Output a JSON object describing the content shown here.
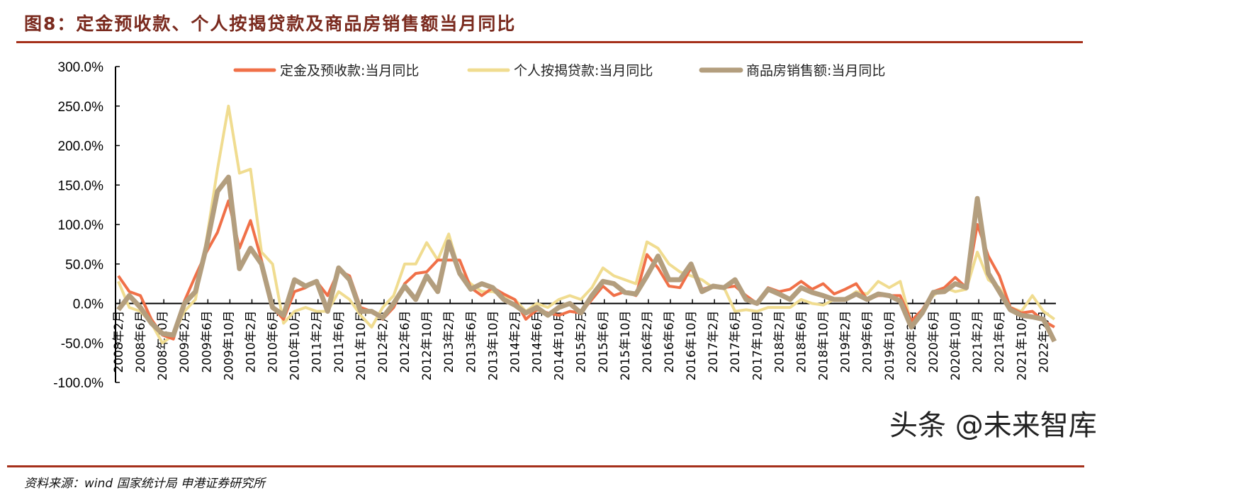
{
  "header": {
    "title": "图8：定金预收款、个人按揭贷款及商品房销售额当月同比"
  },
  "footer": {
    "source": "资料来源：wind 国家统计局 申港证券研究所",
    "watermark": "头条 @未来智库"
  },
  "chart_data": {
    "type": "line",
    "title": "",
    "xlabel": "",
    "ylabel": "",
    "ylim": [
      -100,
      300
    ],
    "y_ticks": [
      "300.0%",
      "250.0%",
      "200.0%",
      "150.0%",
      "100.0%",
      "50.0%",
      "0.0%",
      "-50.0%",
      "-100.0%"
    ],
    "y_tick_values": [
      300,
      250,
      200,
      150,
      100,
      50,
      0,
      -50,
      -100
    ],
    "x_tick_labels": [
      "2008年2月",
      "2008年6月",
      "2008年10月",
      "2009年2月",
      "2009年6月",
      "2009年10月",
      "2010年2月",
      "2010年6月",
      "2010年10月",
      "2011年2月",
      "2011年6月",
      "2011年10月",
      "2012年2月",
      "2012年6月",
      "2012年10月",
      "2013年2月",
      "2013年6月",
      "2013年10月",
      "2014年2月",
      "2014年6月",
      "2014年10月",
      "2015年2月",
      "2015年6月",
      "2015年10月",
      "2016年2月",
      "2016年6月",
      "2016年10月",
      "2017年2月",
      "2017年6月",
      "2017年10月",
      "2018年2月",
      "2018年6月",
      "2018年10月",
      "2019年2月",
      "2019年6月",
      "2019年10月",
      "2020年2月",
      "2020年6月",
      "2020年10月",
      "2021年2月",
      "2021年6月",
      "2021年10月",
      "2022年2月"
    ],
    "x": [
      "2008-02",
      "2008-04",
      "2008-06",
      "2008-08",
      "2008-10",
      "2008-12",
      "2009-02",
      "2009-04",
      "2009-06",
      "2009-08",
      "2009-10",
      "2009-12",
      "2010-02",
      "2010-04",
      "2010-06",
      "2010-08",
      "2010-10",
      "2010-12",
      "2011-02",
      "2011-04",
      "2011-06",
      "2011-08",
      "2011-10",
      "2011-12",
      "2012-02",
      "2012-04",
      "2012-06",
      "2012-08",
      "2012-10",
      "2012-12",
      "2013-02",
      "2013-04",
      "2013-06",
      "2013-08",
      "2013-10",
      "2013-12",
      "2014-02",
      "2014-04",
      "2014-06",
      "2014-08",
      "2014-10",
      "2014-12",
      "2015-02",
      "2015-04",
      "2015-06",
      "2015-08",
      "2015-10",
      "2015-12",
      "2016-02",
      "2016-04",
      "2016-06",
      "2016-08",
      "2016-10",
      "2016-12",
      "2017-02",
      "2017-04",
      "2017-06",
      "2017-08",
      "2017-10",
      "2017-12",
      "2018-02",
      "2018-04",
      "2018-06",
      "2018-08",
      "2018-10",
      "2018-12",
      "2019-02",
      "2019-04",
      "2019-06",
      "2019-08",
      "2019-10",
      "2019-12",
      "2020-02",
      "2020-04",
      "2020-06",
      "2020-08",
      "2020-10",
      "2020-12",
      "2021-02",
      "2021-04",
      "2021-06",
      "2021-08",
      "2021-10",
      "2021-12",
      "2022-02",
      "2022-04"
    ],
    "legend_position": "top",
    "grid": false,
    "series": [
      {
        "name": "定金及预收款:当月同比",
        "color": "#f07048",
        "values": [
          35,
          15,
          10,
          -20,
          -40,
          -45,
          3,
          35,
          65,
          90,
          130,
          70,
          105,
          55,
          -5,
          -20,
          15,
          20,
          28,
          10,
          42,
          35,
          -5,
          -10,
          -20,
          -5,
          25,
          38,
          40,
          55,
          55,
          55,
          20,
          10,
          20,
          12,
          5,
          -20,
          -8,
          -12,
          -15,
          -10,
          -12,
          5,
          22,
          10,
          15,
          10,
          62,
          45,
          22,
          20,
          45,
          18,
          22,
          20,
          22,
          10,
          0,
          20,
          15,
          18,
          28,
          18,
          25,
          12,
          18,
          25,
          5,
          10,
          10,
          10,
          -22,
          -8,
          15,
          20,
          33,
          20,
          100,
          60,
          35,
          -5,
          -12,
          -10,
          -22,
          -30
        ]
      },
      {
        "name": "个人按揭贷款:当月同比",
        "color": "#f0dc90",
        "values": [
          28,
          -5,
          -10,
          -25,
          -50,
          -40,
          -10,
          5,
          80,
          170,
          250,
          165,
          170,
          65,
          50,
          -25,
          -10,
          -5,
          -10,
          -10,
          15,
          5,
          -15,
          -30,
          -5,
          10,
          50,
          50,
          77,
          55,
          88,
          40,
          25,
          15,
          15,
          10,
          5,
          -10,
          0,
          -5,
          5,
          10,
          5,
          20,
          45,
          35,
          30,
          25,
          78,
          70,
          50,
          40,
          35,
          30,
          20,
          20,
          -10,
          -8,
          -10,
          -5,
          -5,
          -5,
          5,
          0,
          -2,
          5,
          5,
          15,
          12,
          28,
          20,
          28,
          -25,
          -8,
          10,
          20,
          15,
          18,
          65,
          30,
          20,
          -5,
          -10,
          10,
          -10,
          -20
        ]
      },
      {
        "name": "商品房销售额:当月同比",
        "color": "#b39e7e",
        "values": [
          -8,
          10,
          -5,
          -25,
          -38,
          -40,
          0,
          15,
          72,
          142,
          160,
          44,
          70,
          50,
          -5,
          -15,
          30,
          22,
          28,
          -10,
          45,
          30,
          -10,
          -10,
          -18,
          0,
          22,
          5,
          35,
          15,
          78,
          38,
          18,
          25,
          20,
          5,
          -2,
          -12,
          -5,
          -15,
          -5,
          0,
          -12,
          10,
          28,
          25,
          14,
          12,
          35,
          60,
          30,
          30,
          50,
          15,
          22,
          20,
          30,
          5,
          0,
          18,
          12,
          5,
          20,
          14,
          10,
          5,
          5,
          12,
          5,
          12,
          10,
          3,
          -30,
          -12,
          14,
          15,
          25,
          20,
          133,
          38,
          15,
          -8,
          -15,
          -17,
          -20,
          -48
        ]
      }
    ]
  }
}
